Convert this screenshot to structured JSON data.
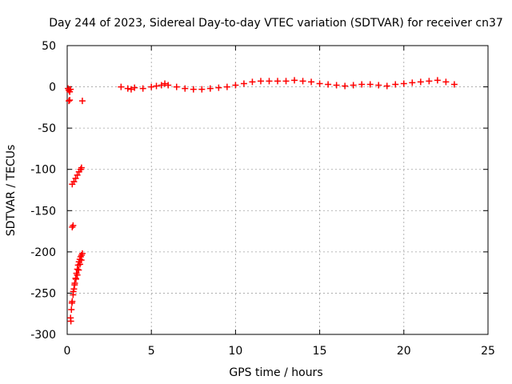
{
  "chart_data": {
    "type": "scatter",
    "title": "Day 244 of 2023, Sidereal Day-to-day VTEC variation (SDTVAR) for receiver cn37",
    "xlabel": "GPS time / hours",
    "ylabel": "SDTVAR / TECUs",
    "xlim": [
      0,
      25
    ],
    "ylim": [
      -300,
      50
    ],
    "xticks": [
      0,
      5,
      10,
      15,
      20,
      25
    ],
    "yticks": [
      50,
      0,
      -50,
      -100,
      -150,
      -200,
      -250,
      -300
    ],
    "grid": true,
    "marker": "plus",
    "color": "#ff0000",
    "series": [
      {
        "x": [
          0.05,
          0.1,
          0.15,
          0.2,
          0.1,
          0.15,
          0.9,
          0.3,
          0.4,
          0.5,
          0.6,
          0.7,
          0.8,
          0.85,
          0.3,
          0.35,
          0.2,
          0.25,
          0.3,
          0.35,
          0.4,
          0.45,
          0.5,
          0.55,
          0.6,
          0.65,
          0.7,
          0.75,
          0.8,
          0.85,
          0.9,
          0.22,
          0.28,
          0.36,
          0.44,
          0.52,
          0.6,
          0.68,
          0.76,
          0.84,
          3.2,
          3.6,
          3.8,
          4.0,
          4.5,
          5.0,
          5.3,
          5.6,
          5.8,
          6.0,
          6.5,
          7.0,
          7.5,
          8.0,
          8.5,
          9.0,
          9.5,
          10.0,
          10.5,
          11.0,
          11.5,
          12.0,
          12.5,
          13.0,
          13.5,
          14.0,
          14.5,
          15.0,
          15.5,
          16.0,
          16.5,
          17.0,
          17.5,
          18.0,
          18.5,
          19.0,
          19.5,
          20.0,
          20.5,
          21.0,
          21.5,
          22.0,
          22.5,
          23.0
        ],
        "y": [
          -2,
          -4,
          -6,
          -3,
          -17,
          -16,
          -17,
          -118,
          -115,
          -111,
          -107,
          -103,
          -100,
          -98,
          -170,
          -168,
          -280,
          -270,
          -260,
          -252,
          -245,
          -238,
          -232,
          -226,
          -221,
          -216,
          -212,
          -209,
          -206,
          -204,
          -202,
          -284,
          -262,
          -248,
          -240,
          -233,
          -228,
          -222,
          -215,
          -210,
          0,
          -2,
          -3,
          -1,
          -2,
          0,
          1,
          2,
          4,
          2,
          0,
          -2,
          -3,
          -3,
          -2,
          -1,
          0,
          2,
          4,
          6,
          7,
          7,
          7,
          7,
          8,
          7,
          6,
          4,
          3,
          2,
          1,
          2,
          3,
          3,
          2,
          1,
          3,
          4,
          5,
          6,
          7,
          8,
          6,
          3
        ]
      }
    ]
  }
}
